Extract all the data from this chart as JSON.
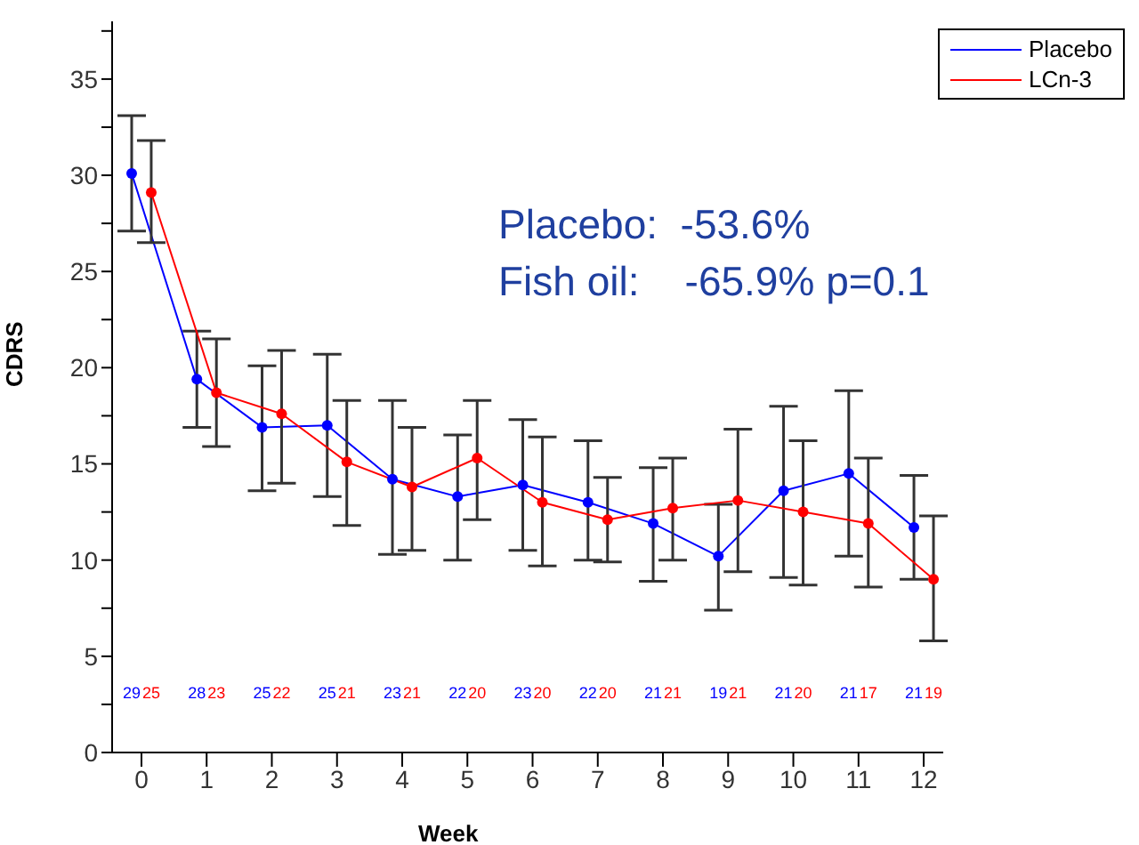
{
  "chart_data": {
    "type": "line",
    "xlabel": "Week",
    "ylabel": "CDRS",
    "xlim": [
      -0.45,
      12.3
    ],
    "xticks": [
      0,
      1,
      2,
      3,
      4,
      5,
      6,
      7,
      8,
      9,
      10,
      11,
      12
    ],
    "ylim": [
      0,
      38
    ],
    "yticks": [
      0,
      {
        "value": 2.5,
        "label": null
      },
      5,
      {
        "value": 7.5,
        "label": null
      },
      10,
      {
        "value": 12.5,
        "label": null
      },
      15,
      {
        "value": 17.5,
        "label": null
      },
      20,
      {
        "value": 22.5,
        "label": null
      },
      25,
      {
        "value": 27.5,
        "label": null
      },
      30,
      {
        "value": 32.5,
        "label": null
      },
      35,
      {
        "value": 37.5,
        "label": null
      }
    ],
    "legend": "top right",
    "marker": "circle",
    "line_style": "solid",
    "grid": false,
    "series": [
      {
        "name": "Placebo",
        "color": "#0000ff",
        "x": [
          -0.15,
          0.85,
          1.85,
          2.85,
          3.85,
          4.85,
          5.85,
          6.85,
          7.85,
          8.85,
          9.85,
          10.85,
          11.85
        ],
        "values": [
          30.1,
          19.4,
          16.9,
          17.0,
          14.2,
          13.3,
          13.9,
          13.0,
          11.9,
          10.2,
          13.6,
          14.5,
          11.7
        ],
        "errors": [
          [
            27.1,
            33.1
          ],
          [
            16.9,
            21.9
          ],
          [
            13.6,
            20.1
          ],
          [
            13.3,
            20.7
          ],
          [
            10.3,
            18.3
          ],
          [
            10.0,
            16.5
          ],
          [
            10.5,
            17.3
          ],
          [
            10.0,
            16.2
          ],
          [
            8.9,
            14.8
          ],
          [
            7.4,
            12.9
          ],
          [
            9.1,
            18.0
          ],
          [
            10.2,
            18.8
          ],
          [
            9.0,
            14.4
          ]
        ]
      },
      {
        "name": "LCn-3",
        "color": "#ff0000",
        "x": [
          0.15,
          1.15,
          2.15,
          3.15,
          4.15,
          5.15,
          6.15,
          7.15,
          8.15,
          9.15,
          10.15,
          11.15,
          12.15
        ],
        "values": [
          29.1,
          18.7,
          17.6,
          15.1,
          13.8,
          15.3,
          13.0,
          12.1,
          12.7,
          13.1,
          12.5,
          11.9,
          9.0
        ],
        "errors": [
          [
            26.5,
            31.8
          ],
          [
            15.9,
            21.5
          ],
          [
            14.0,
            20.9
          ],
          [
            11.8,
            18.3
          ],
          [
            10.5,
            16.9
          ],
          [
            12.1,
            18.3
          ],
          [
            9.7,
            16.4
          ],
          [
            9.9,
            14.3
          ],
          [
            10.0,
            15.3
          ],
          [
            9.4,
            16.8
          ],
          [
            8.7,
            16.2
          ],
          [
            8.6,
            15.3
          ],
          [
            5.8,
            12.3
          ]
        ]
      }
    ],
    "annotations": [
      "Placebo:  -53.6%",
      "Fish oil:    -65.9% p=0.1",
      "29",
      "25",
      "28",
      "23",
      "25",
      "22",
      "25",
      "21",
      "23",
      "21",
      "22",
      "20",
      "23",
      "20",
      "22",
      "20",
      "21",
      "21",
      "19",
      "21",
      "21",
      "20",
      "21",
      "17",
      "21",
      "19"
    ]
  }
}
